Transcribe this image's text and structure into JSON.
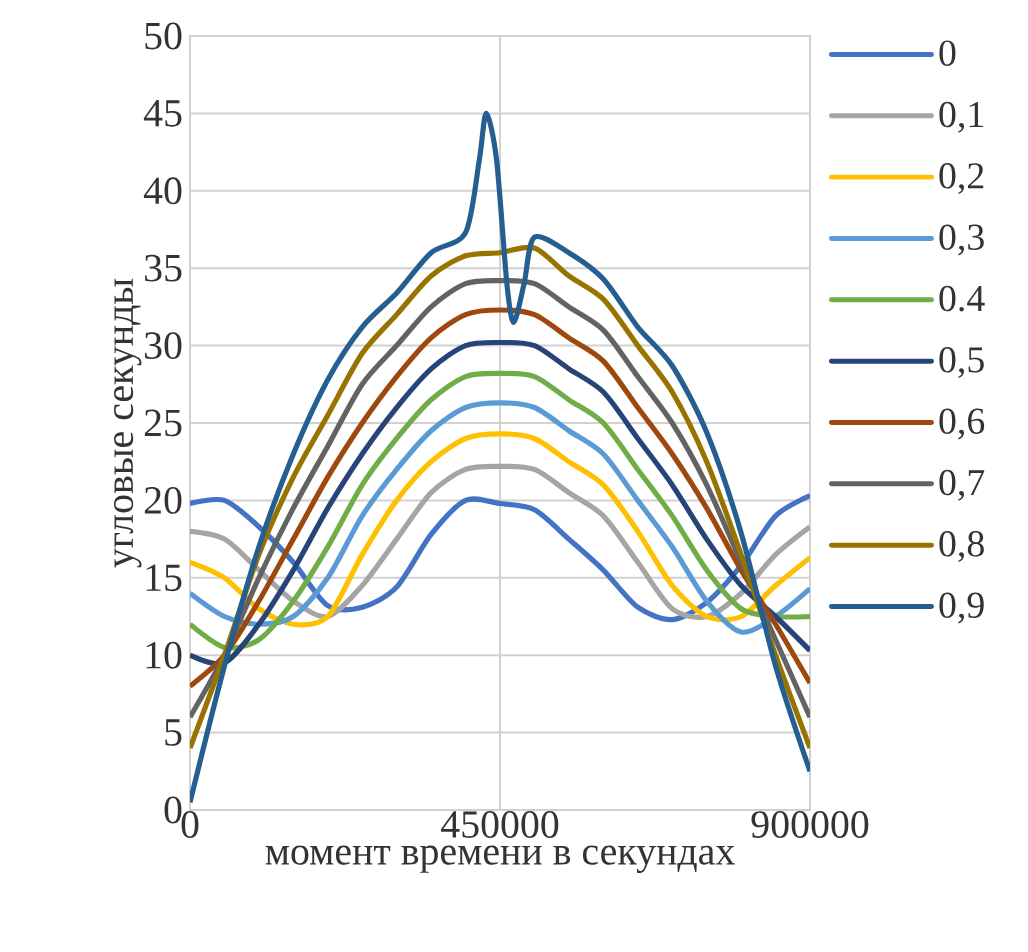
{
  "chart_data": {
    "type": "line",
    "xlabel": "момент времени в секундах",
    "ylabel": "угловые секунды",
    "x": [
      0,
      50000,
      100000,
      150000,
      200000,
      250000,
      300000,
      350000,
      400000,
      450000,
      500000,
      550000,
      600000,
      650000,
      700000,
      750000,
      800000,
      850000,
      900000
    ],
    "xlim": [
      0,
      900000
    ],
    "xticks": [
      0,
      450000,
      900000
    ],
    "ylim": [
      0,
      50
    ],
    "yticks": [
      0,
      5,
      10,
      15,
      20,
      25,
      30,
      35,
      40,
      45,
      50
    ],
    "grid": true,
    "legend": "right",
    "marker": "none",
    "line_style": "solid",
    "series": [
      {
        "name": "0",
        "color": "#4472c4",
        "values": [
          19.8,
          20,
          18.3,
          16,
          13.2,
          13.1,
          14.4,
          17.8,
          20,
          19.8,
          19.4,
          17.5,
          15.5,
          13.1,
          12.3,
          13.4,
          15.8,
          19,
          20.3
        ]
      },
      {
        "name": "0,1",
        "color": "#a5a5a5",
        "values": [
          18,
          17.5,
          15.5,
          13.5,
          12.5,
          14.5,
          17.5,
          20.5,
          22,
          22.2,
          22,
          20.5,
          19,
          16,
          13,
          12.5,
          14,
          16.5,
          18.3
        ]
      },
      {
        "name": "0,2",
        "color": "#ffc000",
        "values": [
          16,
          15,
          13,
          12,
          12.5,
          16.5,
          20,
          22.5,
          24,
          24.3,
          24,
          22.5,
          21,
          18,
          14.5,
          12.5,
          12.5,
          14.5,
          16.3
        ]
      },
      {
        "name": "0,3",
        "color": "#5b9bd5",
        "values": [
          14,
          12.5,
          12,
          12.5,
          15,
          19,
          22,
          24.5,
          26,
          26.3,
          26,
          24.5,
          23,
          20,
          17,
          13.5,
          11.5,
          12.5,
          14.3
        ]
      },
      {
        "name": "0.4",
        "color": "#70ad47",
        "values": [
          12,
          10.5,
          11,
          13.5,
          17,
          21,
          24,
          26.5,
          28,
          28.2,
          28,
          26.5,
          25,
          22,
          19,
          15.5,
          13,
          12.5,
          12.5
        ]
      },
      {
        "name": "0,5",
        "color": "#264478",
        "values": [
          10,
          9.5,
          12,
          15.5,
          19.5,
          23,
          26,
          28.5,
          30,
          30.2,
          30,
          28.5,
          27,
          24,
          21,
          17.5,
          14.5,
          12.5,
          10.3
        ]
      },
      {
        "name": "0,6",
        "color": "#9e480e",
        "values": [
          8,
          10,
          13.5,
          17.5,
          21.5,
          25,
          28,
          30.5,
          32,
          32.3,
          32,
          30.5,
          29,
          26,
          23,
          19.5,
          15.5,
          12,
          8.2
        ]
      },
      {
        "name": "0,7",
        "color": "#636363",
        "values": [
          6,
          10,
          15,
          19.5,
          23.5,
          27.5,
          30,
          32.5,
          34,
          34.2,
          34,
          32.5,
          31,
          28,
          25,
          21,
          16,
          11,
          6
        ]
      },
      {
        "name": "0,8",
        "color": "#997300",
        "values": [
          4,
          10,
          16.5,
          21.5,
          25.5,
          29.5,
          32,
          34.5,
          35.8,
          36,
          36.3,
          34.5,
          33,
          30,
          27,
          22.5,
          16.5,
          10,
          4
        ]
      },
      {
        "name": "0,9",
        "color": "#255e91",
        "x": [
          0,
          50000,
          100000,
          150000,
          200000,
          250000,
          300000,
          350000,
          400000,
          420000,
          430000,
          445000,
          460000,
          470000,
          485000,
          500000,
          550000,
          600000,
          650000,
          700000,
          750000,
          800000,
          850000,
          900000
        ],
        "values": [
          0.5,
          9.3,
          17,
          23,
          27.8,
          31.2,
          33.4,
          36,
          37.3,
          42,
          45,
          42,
          34,
          31.5,
          34,
          37,
          36,
          34.3,
          31.2,
          28.7,
          24.4,
          17.9,
          9.3,
          2.5
        ]
      }
    ]
  }
}
